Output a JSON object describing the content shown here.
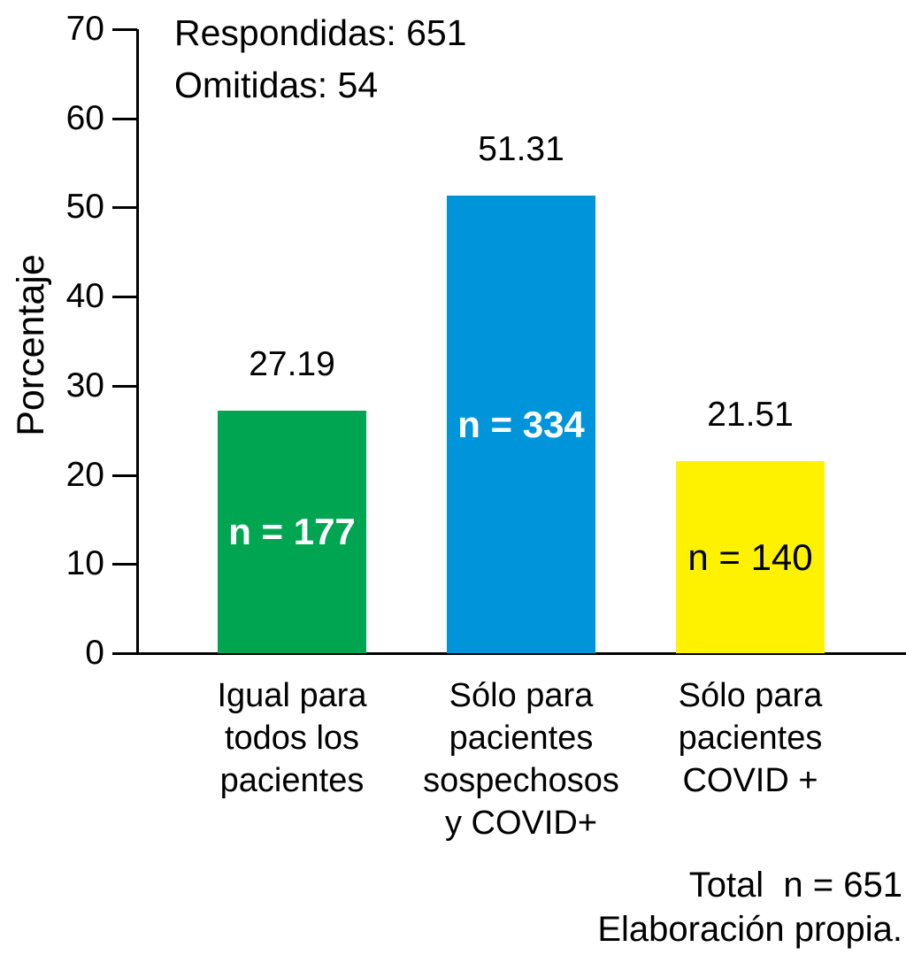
{
  "chart_data": {
    "type": "bar",
    "title": "",
    "ylabel": "Porcentaje",
    "xlabel": "",
    "ylim": [
      0,
      70
    ],
    "y_ticks": [
      0,
      10,
      20,
      30,
      40,
      50,
      60,
      70
    ],
    "grid": false,
    "legend": false,
    "categories": [
      [
        "Igual para",
        "todos los",
        "pacientes"
      ],
      [
        "Sólo para",
        "pacientes",
        "sospechosos",
        "y COVID+"
      ],
      [
        "Sólo para",
        "pacientes",
        "COVID +"
      ]
    ],
    "series": [
      {
        "name": "Porcentaje",
        "values": [
          27.19,
          51.31,
          21.51
        ]
      }
    ],
    "value_labels": [
      "27.19",
      "51.31",
      "21.51"
    ],
    "bar_counts": [
      "n = 177",
      "n = 334",
      "n = 140"
    ],
    "counts_n": [
      177,
      334,
      140
    ],
    "bar_colors": [
      "#00A551",
      "#0095DA",
      "#FFF200"
    ],
    "bar_count_label_colors": [
      "#ffffff",
      "#ffffff",
      "#000000"
    ],
    "bar_count_label_bold": [
      true,
      true,
      false
    ],
    "axis_color": "#000000",
    "annotations": [
      "Respondidas: 651",
      "Omitidas: 54"
    ],
    "footer": [
      "Total  n = 651",
      "Elaboración propia."
    ]
  }
}
